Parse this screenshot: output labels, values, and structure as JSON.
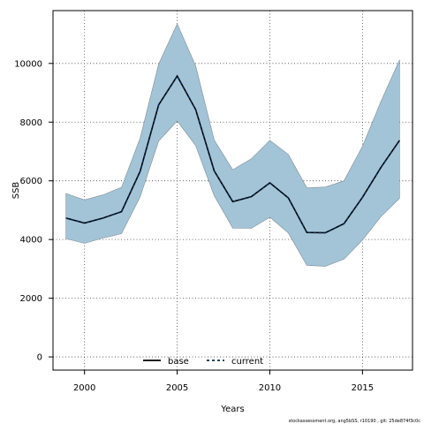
{
  "chart_data": {
    "type": "line",
    "xlabel": "Years",
    "ylabel": "SSB",
    "xlim": [
      1998.3,
      2017.7
    ],
    "ylim": [
      -450,
      11800
    ],
    "x_ticks": [
      2000,
      2005,
      2010,
      2015
    ],
    "y_ticks": [
      0,
      2000,
      4000,
      6000,
      8000,
      10000
    ],
    "grid": true,
    "grid_style": "dotted",
    "legend_position": "bottom-center",
    "x": [
      1999,
      2000,
      2001,
      2002,
      2003,
      2004,
      2005,
      2006,
      2007,
      2008,
      2009,
      2010,
      2011,
      2012,
      2013,
      2014,
      2015,
      2016,
      2017
    ],
    "band": {
      "upper": [
        5570,
        5350,
        5520,
        5780,
        7450,
        9980,
        11350,
        9920,
        7390,
        6380,
        6750,
        7380,
        6900,
        5760,
        5790,
        6000,
        7180,
        8710,
        10120
      ],
      "lower": [
        4030,
        3870,
        4050,
        4200,
        5450,
        7350,
        8040,
        7200,
        5490,
        4390,
        4380,
        4760,
        4220,
        3120,
        3090,
        3330,
        3980,
        4780,
        5400
      ]
    },
    "series": [
      {
        "name": "base",
        "values": [
          4730,
          4560,
          4730,
          4950,
          6320,
          8590,
          9570,
          8430,
          6340,
          5290,
          5460,
          5930,
          5420,
          4240,
          4230,
          4540,
          5440,
          6460,
          7380
        ]
      },
      {
        "name": "current",
        "values": [
          4730,
          4560,
          4730,
          4950,
          6320,
          8590,
          9570,
          8430,
          6340,
          5290,
          5460,
          5930,
          5420,
          4240,
          4230,
          4540,
          5440,
          6460,
          7380
        ]
      }
    ],
    "colors": {
      "band_fill": "#a3c4d6",
      "band_edge": "#7d8e99",
      "base_line": "#000000",
      "current_line": "#0b2a52",
      "grid": "#444444"
    }
  },
  "footer_note": "stockassessment.org, ang5bSS, r10190 , git: 25de874f3c0c"
}
